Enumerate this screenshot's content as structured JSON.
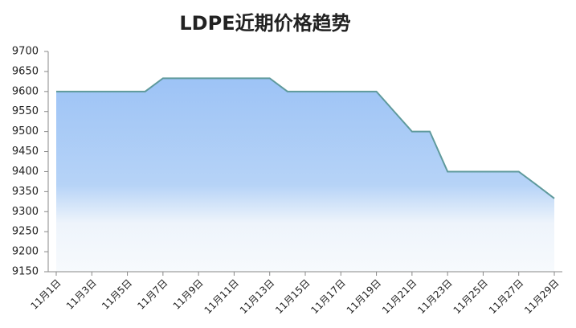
{
  "chart_data": {
    "type": "area",
    "title": "LDPE近期价格趋势",
    "categories": [
      "11月1日",
      null,
      "11月3日",
      null,
      "11月5日",
      null,
      "11月7日",
      null,
      "11月9日",
      null,
      "11月11日",
      null,
      "11月13日",
      null,
      "11月15日",
      null,
      "11月17日",
      null,
      "11月19日",
      null,
      "11月21日",
      null,
      "11月23日",
      null,
      "11月25日",
      null,
      "11月27日",
      null,
      "11月29日"
    ],
    "values": [
      9600,
      9600,
      9600,
      9600,
      9600,
      9600,
      9633,
      9633,
      9633,
      9633,
      9633,
      9633,
      9633,
      9600,
      9600,
      9600,
      9600,
      9600,
      9600,
      9550,
      9500,
      9500,
      9400,
      9400,
      9400,
      9400,
      9400,
      9367,
      9333
    ],
    "color": "#5f9a9c",
    "ylim": [
      9150,
      9700
    ],
    "yticks": [
      9150,
      9200,
      9250,
      9300,
      9350,
      9400,
      9450,
      9500,
      9550,
      9600,
      9650,
      9700
    ]
  }
}
